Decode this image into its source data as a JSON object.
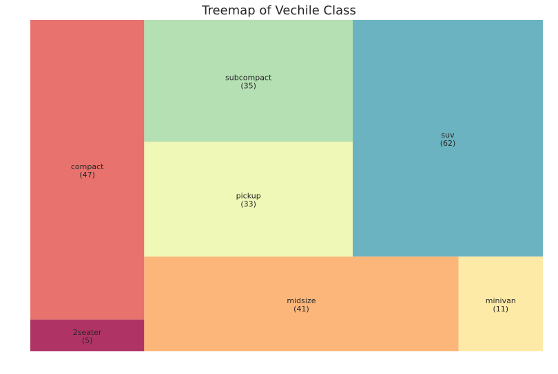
{
  "chart_data": {
    "type": "treemap",
    "title": "Treemap of Vechile Class",
    "categories": [
      "2seater",
      "compact",
      "subcompact",
      "pickup",
      "suv",
      "midsize",
      "minivan"
    ],
    "values": [
      5,
      47,
      35,
      33,
      62,
      41,
      11
    ],
    "colors": {
      "2seater": "#b03365",
      "compact": "#e8726d",
      "subcompact": "#b5e0b3",
      "pickup": "#eff8b7",
      "suv": "#6bb3c1",
      "midsize": "#fdb67a",
      "minivan": "#feeaa7"
    }
  }
}
